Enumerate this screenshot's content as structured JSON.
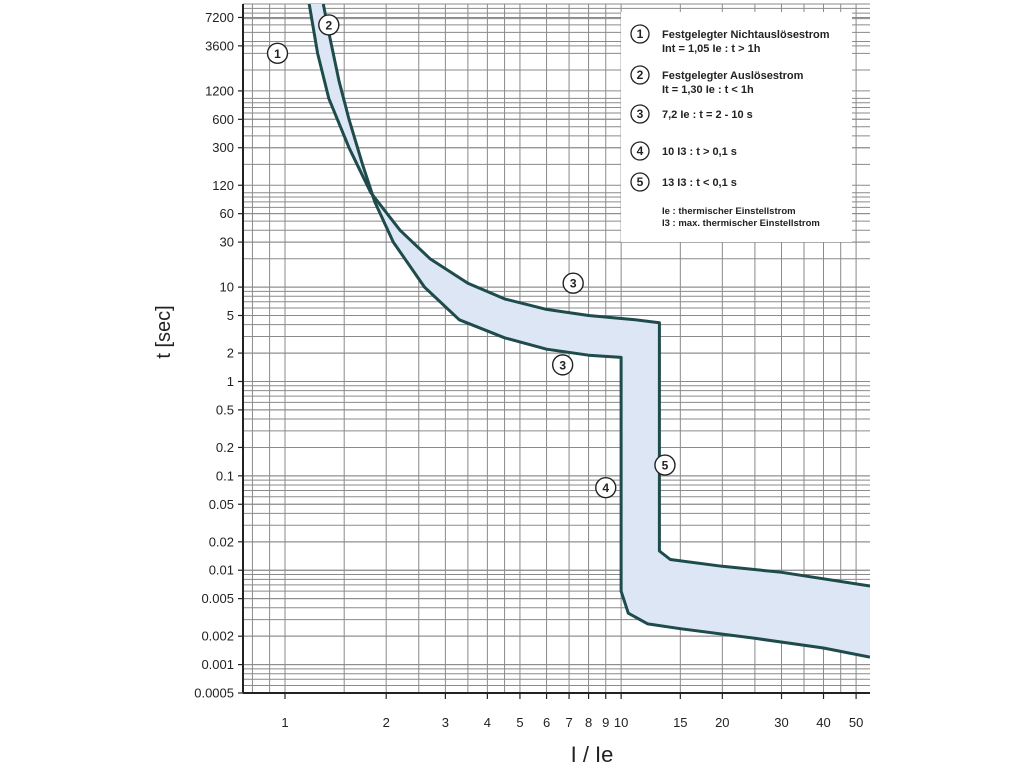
{
  "chart_data": {
    "type": "area",
    "xlabel": "I / Ie",
    "ylabel": "t [sec]",
    "x_scale": "log",
    "y_scale": "log",
    "xlim": [
      0.75,
      55
    ],
    "ylim": [
      0.0005,
      10000
    ],
    "x_ticks": [
      1,
      2,
      3,
      4,
      5,
      6,
      7,
      8,
      9,
      10,
      15,
      20,
      30,
      40,
      50
    ],
    "x_tick_labels": [
      "1",
      "2",
      "3",
      "4",
      "5",
      "6",
      "7",
      "8",
      "9",
      "10",
      "15",
      "20",
      "30",
      "40",
      "50"
    ],
    "y_ticks": [
      0.0005,
      0.001,
      0.002,
      0.005,
      0.01,
      0.02,
      0.05,
      0.1,
      0.2,
      0.5,
      1,
      2,
      5,
      10,
      30,
      60,
      120,
      300,
      600,
      1200,
      3600,
      7200
    ],
    "y_tick_labels": [
      "0.0005",
      "0.001",
      "0.002",
      "0.005",
      "0.01",
      "0.02",
      "0.05",
      "0.1",
      "0.2",
      "0.5",
      "1",
      "2",
      "5",
      "10",
      "30",
      "60",
      "120",
      "300",
      "600",
      "1200",
      "3600",
      "7200"
    ],
    "grid": true,
    "band_color": "#dde6f5",
    "line_color": "#1e4b4b",
    "series": [
      {
        "role": "upper",
        "points": [
          [
            1.18,
            10000
          ],
          [
            1.25,
            3000
          ],
          [
            1.35,
            1000
          ],
          [
            1.55,
            300
          ],
          [
            1.8,
            100
          ],
          [
            2.2,
            40
          ],
          [
            2.7,
            20
          ],
          [
            3.5,
            11
          ],
          [
            4.5,
            7.5
          ],
          [
            6,
            5.8
          ],
          [
            8,
            5
          ],
          [
            11,
            4.5
          ],
          [
            13,
            4.2
          ],
          [
            13,
            0.016
          ],
          [
            14,
            0.013
          ],
          [
            20,
            0.011
          ],
          [
            30,
            0.0095
          ],
          [
            55,
            0.0068
          ]
        ]
      },
      {
        "role": "lower",
        "points": [
          [
            1.3,
            10000
          ],
          [
            1.35,
            5000
          ],
          [
            1.45,
            1500
          ],
          [
            1.55,
            600
          ],
          [
            1.7,
            200
          ],
          [
            1.85,
            80
          ],
          [
            2.1,
            30
          ],
          [
            2.6,
            10
          ],
          [
            3.3,
            4.5
          ],
          [
            4.5,
            2.9
          ],
          [
            6,
            2.2
          ],
          [
            8,
            1.9
          ],
          [
            10,
            1.8
          ],
          [
            10,
            0.006
          ],
          [
            10.5,
            0.0035
          ],
          [
            12,
            0.0027
          ],
          [
            15,
            0.0024
          ],
          [
            25,
            0.0019
          ],
          [
            40,
            0.0015
          ],
          [
            55,
            0.0012
          ]
        ]
      }
    ],
    "markers": [
      {
        "label": "1",
        "x": 0.95,
        "y": 3000
      },
      {
        "label": "2",
        "x": 1.35,
        "y": 6000
      },
      {
        "label": "3",
        "x": 7.2,
        "y": 11
      },
      {
        "label": "3",
        "x": 6.7,
        "y": 1.5
      },
      {
        "label": "4",
        "x": 9.0,
        "y": 0.075
      },
      {
        "label": "5",
        "x": 13.5,
        "y": 0.13
      }
    ],
    "legend": {
      "position": "top-right",
      "items": [
        {
          "num": "1",
          "line1": "Festgelegter Nichtauslösestrom",
          "line2": "Int = 1,05 Ie : t > 1h"
        },
        {
          "num": "2",
          "line1": "Festgelegter Auslösestrom",
          "line2": "It = 1,30 Ie : t < 1h"
        },
        {
          "num": "3",
          "line1": "7,2 Ie : t = 2 - 10 s",
          "line2": ""
        },
        {
          "num": "4",
          "line1": "10 I3 : t > 0,1 s",
          "line2": ""
        },
        {
          "num": "5",
          "line1": "13 I3 : t < 0,1 s",
          "line2": ""
        }
      ],
      "notes": [
        "Ie : thermischer Einstellstrom",
        "I3 : max. thermischer Einstellstrom"
      ]
    }
  }
}
